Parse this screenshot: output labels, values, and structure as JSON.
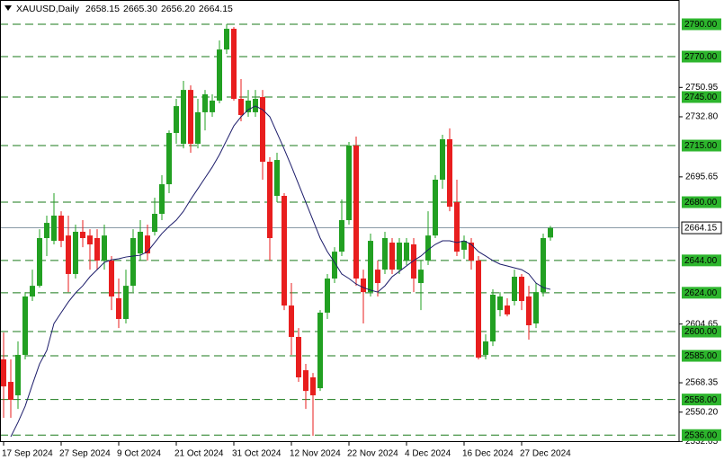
{
  "chart_data": {
    "type": "candlestick",
    "title": "XAUUSD,Daily",
    "header_values": [
      2658.15,
      {
        "value": 2665.3,
        "label": "2665.30"
      },
      {
        "value": 2656.2,
        "label": "2656.20"
      },
      2664.15
    ],
    "categories": [
      "17 Sep 2024",
      null,
      null,
      null,
      null,
      null,
      null,
      null,
      "27 Sep 2024",
      null,
      null,
      null,
      null,
      null,
      null,
      null,
      "9 Oct 2024",
      null,
      null,
      null,
      null,
      null,
      null,
      null,
      "21 Oct 2024",
      null,
      null,
      null,
      null,
      null,
      null,
      null,
      "31 Oct 2024",
      null,
      null,
      null,
      null,
      null,
      null,
      null,
      "12 Nov 2024",
      null,
      null,
      null,
      null,
      null,
      null,
      null,
      "22 Nov 2024",
      null,
      null,
      null,
      null,
      null,
      null,
      null,
      "4 Dec 2024",
      null,
      null,
      null,
      null,
      null,
      null,
      null,
      "16 Dec 2024",
      null,
      null,
      null,
      null,
      null,
      null,
      null,
      "27 Dec 2024",
      null,
      null,
      null,
      null
    ],
    "open": [
      2582.8,
      2568.9,
      2560.6,
      2585.6,
      2621.7,
      2628.3,
      2657.8,
      2656.1,
      2671.7,
      2659.4,
      2635.6,
      2661.7,
      2659.4,
      2657.8,
      2643.9,
      2643.9,
      2620.6,
      2607.8,
      2628.3,
      2648.3,
      2659.4,
      2661.7,
      2672.8,
      2691.1,
      2722.8,
      2716.1,
      2749.4,
      2716.1,
      2735.6,
      2735.6,
      2742.8,
      2774.4,
      2787.2,
      2743.9,
      2735.6,
      2735.6,
      2745,
      2705,
      2683.9,
      2683.9,
      2616.1,
      2596.7,
      2576.1,
      2571.7,
      2565,
      2611.7,
      2632.8,
      2649.4,
      2668.9,
      2715,
      2632.8,
      2624.4,
      2638.3,
      2638.3,
      2655,
      2638.3,
      2643.9,
      2653.9,
      2630,
      2643.9,
      2659.4,
      2693.9,
      2718.9,
      2680,
      2650.6,
      2655,
      2643.9,
      2585.6,
      2593.9,
      2613.3,
      2616.1,
      2618.9,
      2633.9,
      2621.7,
      2605,
      2624.4,
      2658.15
    ],
    "high": [
      2599.4,
      2582.8,
      2593.9,
      2624.4,
      2638.3,
      2663.3,
      2671.7,
      2685.6,
      2674.4,
      2671.7,
      2666.1,
      2668.9,
      2663.3,
      2663.3,
      2666.1,
      2646.7,
      2632.8,
      2638.3,
      2663.3,
      2668.9,
      2666.1,
      2682.8,
      2696.7,
      2724.4,
      2743.9,
      2755,
      2752.2,
      2743.9,
      2749.4,
      2746.7,
      2780,
      2790,
      2788.3,
      2756.1,
      2749.4,
      2749.4,
      2749.4,
      2707.8,
      2710.6,
      2685.6,
      2630,
      2602.2,
      2580,
      2574.4,
      2613.3,
      2635.6,
      2652.2,
      2681.7,
      2717.2,
      2720.6,
      2638.3,
      2660.6,
      2643.9,
      2661.7,
      2657.8,
      2657.8,
      2657.8,
      2657.8,
      2643.9,
      2674.4,
      2696.7,
      2721.7,
      2725.6,
      2693.9,
      2659.4,
      2657.8,
      2646.7,
      2598.3,
      2626.1,
      2624.4,
      2620.6,
      2638.3,
      2635.6,
      2628.3,
      2630,
      2660.6,
      2665.3
    ],
    "low": [
      2546.7,
      2546.7,
      2552.2,
      2582.8,
      2618.9,
      2627.2,
      2646.7,
      2653.9,
      2652.2,
      2624.4,
      2632.8,
      2652.2,
      2638.3,
      2638.3,
      2638.3,
      2613.3,
      2602.2,
      2605,
      2624.4,
      2643.9,
      2643.9,
      2659.4,
      2668.9,
      2685.6,
      2716.1,
      2713.3,
      2710.6,
      2713.3,
      2724.4,
      2732.8,
      2741.1,
      2771.7,
      2742.8,
      2730,
      2732.8,
      2732.8,
      2693.9,
      2643.9,
      2680,
      2613.3,
      2585.6,
      2568.9,
      2552.2,
      2535.6,
      2563.3,
      2607.8,
      2630,
      2646.7,
      2666.1,
      2628.3,
      2605,
      2621.7,
      2621.7,
      2635.6,
      2635.6,
      2635.6,
      2641.1,
      2624.4,
      2613.3,
      2641.1,
      2657.8,
      2688.3,
      2674.4,
      2646.7,
      2645,
      2638.3,
      2582.8,
      2582.8,
      2591.1,
      2609.4,
      2609.4,
      2616.1,
      2613.3,
      2595,
      2602.2,
      2621.7,
      2656.2
    ],
    "close": [
      2566.1,
      2557.8,
      2585.6,
      2621.7,
      2628.3,
      2657.8,
      2667.2,
      2671.7,
      2656.1,
      2635.6,
      2661.7,
      2657.8,
      2653.9,
      2643.9,
      2659.4,
      2621.7,
      2607.8,
      2628.3,
      2657.8,
      2661.7,
      2648.3,
      2672.8,
      2691.1,
      2722.8,
      2739.4,
      2749.4,
      2716.1,
      2735.6,
      2746.7,
      2742.8,
      2774.4,
      2787.2,
      2743.9,
      2733.9,
      2742.8,
      2743.9,
      2705,
      2657.8,
      2706.1,
      2616.1,
      2596.7,
      2571.7,
      2563.3,
      2560.6,
      2611.7,
      2632.8,
      2649.4,
      2668.9,
      2715,
      2632.8,
      2624.4,
      2656.1,
      2630,
      2657.8,
      2638.3,
      2655,
      2655,
      2632.8,
      2638.3,
      2659.4,
      2693.9,
      2718.9,
      2677.2,
      2649.4,
      2656.1,
      2643.9,
      2583.9,
      2593.9,
      2622.8,
      2621.7,
      2610.6,
      2633.9,
      2618.9,
      2603.9,
      2624.4,
      2657.8,
      2664.15
    ],
    "moving_average": [
      null,
      2535,
      2543.9,
      2553.9,
      2567.2,
      2580,
      2588.3,
      2605,
      2611.7,
      2618.3,
      2623.9,
      2628.3,
      2633.9,
      2638.3,
      2642.8,
      2644.4,
      2645,
      2646.1,
      2646.7,
      2647.2,
      2649.4,
      2655,
      2660.6,
      2665,
      2668.9,
      2674.4,
      2681.7,
      2688.3,
      2695,
      2701.7,
      2709.4,
      2718.3,
      2727.2,
      2732.8,
      2737.2,
      2739.4,
      2737.2,
      2732.8,
      2722.8,
      2712.8,
      2702.2,
      2691.1,
      2680,
      2668.9,
      2657.8,
      2649.4,
      2642.8,
      2635.6,
      2632.8,
      2629.4,
      2627.2,
      2625.6,
      2624.4,
      2628.3,
      2633.9,
      2637.2,
      2640.6,
      2643.9,
      2646.7,
      2650.6,
      2653.9,
      2656.1,
      2656.1,
      2655,
      2656.1,
      2653.9,
      2649.4,
      2646.7,
      2643.9,
      2641.7,
      2640.6,
      2639.4,
      2638.3,
      2635.6,
      2630,
      2627.2,
      2626.1
    ],
    "up_color": "#22a022",
    "down_color": "#e81e1e",
    "ma_color": "#1c1c6a",
    "levels": [
      {
        "value": 2790,
        "label": "2790.00"
      },
      {
        "value": 2770,
        "label": "2770.00"
      },
      {
        "value": 2745,
        "label": "2745.00"
      },
      {
        "value": 2715,
        "label": "2715.00"
      },
      {
        "value": 2680,
        "label": "2680.00"
      },
      {
        "value": 2644,
        "label": "2644.00"
      },
      {
        "value": 2624,
        "label": "2624.00"
      },
      {
        "value": 2600,
        "label": "2600.00"
      },
      {
        "value": 2585,
        "label": "2585.00"
      },
      {
        "value": 2558,
        "label": "2558.00"
      },
      {
        "value": 2536,
        "label": "2536.00"
      }
    ],
    "level_color": "#1a7a1a",
    "last_price": 2664.15,
    "ylim": [
      2531.7,
      2805
    ],
    "yticks": [
      2750.95,
      {
        "value": 2732.8,
        "label": "2732.80"
      },
      2695.65,
      2604.65,
      2568.35,
      {
        "value": 2550.2,
        "label": "2550.20"
      },
      2532.05
    ]
  }
}
